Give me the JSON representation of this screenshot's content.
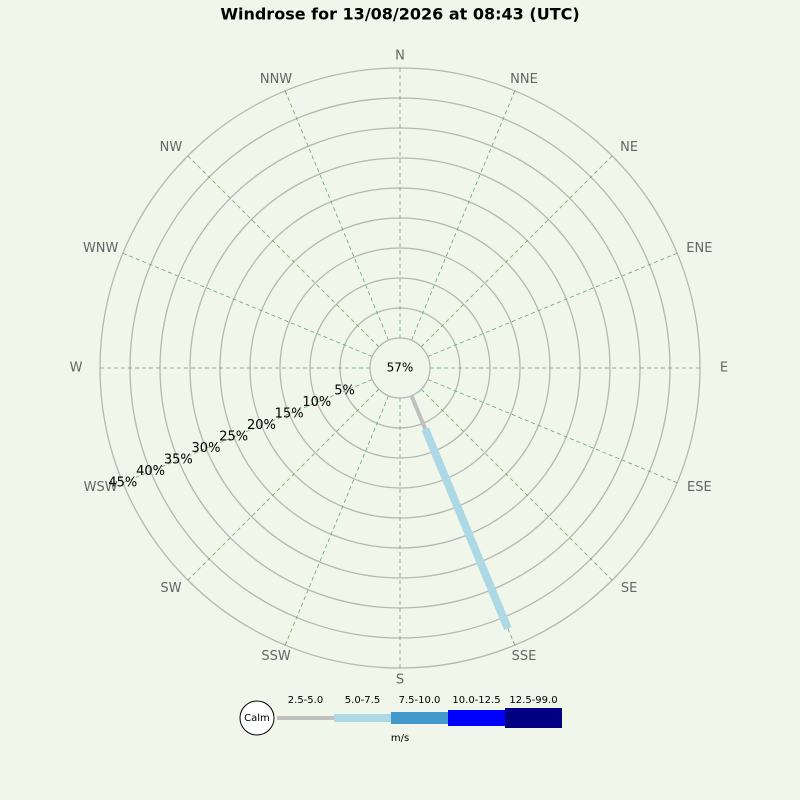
{
  "chart_data": {
    "type": "windrose",
    "title": "Windrose for 13/08/2026 at 08:43 (UTC)",
    "categories": [
      "N",
      "NNE",
      "NE",
      "ENE",
      "E",
      "ESE",
      "SE",
      "SSE",
      "S",
      "SSW",
      "SW",
      "WSW",
      "W",
      "WNW",
      "NW",
      "NNW"
    ],
    "calm_label": "Calm",
    "calm": 57,
    "calm_value_label": "57%",
    "rlim": [
      0,
      45
    ],
    "rticks": [
      {
        "value": 5,
        "label": "5%"
      },
      {
        "value": 10,
        "label": "10%"
      },
      {
        "value": 15,
        "label": "15%"
      },
      {
        "value": 20,
        "label": "20%"
      },
      {
        "value": 25,
        "label": "25%"
      },
      {
        "value": 30,
        "label": "30%"
      },
      {
        "value": 35,
        "label": "35%"
      },
      {
        "value": 40,
        "label": "40%"
      },
      {
        "value": 45,
        "label": "45%"
      }
    ],
    "legend_unit": "m/s",
    "series": [
      {
        "name": "2.5-5.0",
        "color": "#c0c0c0",
        "values": [
          0,
          0,
          0,
          0,
          0,
          0,
          0,
          6,
          0,
          0,
          0,
          0,
          0,
          0,
          0,
          0
        ]
      },
      {
        "name": "5.0-7.5",
        "color": "#add8e6",
        "values": [
          0,
          0,
          0,
          0,
          0,
          0,
          0.2,
          36,
          0,
          0,
          0,
          0,
          0,
          0,
          0,
          0
        ]
      },
      {
        "name": "7.5-10.0",
        "color": "#4499cc",
        "values": [
          0,
          0,
          0,
          0,
          0,
          0,
          0,
          0,
          0,
          0,
          0,
          0,
          0,
          0,
          0,
          0
        ]
      },
      {
        "name": "10.0-12.5",
        "color": "#0000ff",
        "values": [
          0,
          0,
          0,
          0,
          0,
          0,
          0,
          0,
          0,
          0,
          0,
          0,
          0,
          0,
          0,
          0
        ]
      },
      {
        "name": "12.5-99.0",
        "color": "#000080",
        "values": [
          0,
          0,
          0,
          0,
          0,
          0,
          0,
          0,
          0,
          0,
          0,
          0,
          0,
          0,
          0,
          0
        ]
      }
    ]
  }
}
